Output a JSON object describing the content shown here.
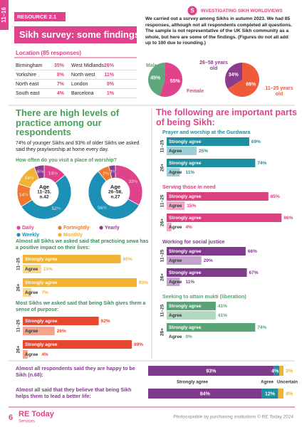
{
  "header": {
    "stage": "11–16",
    "resource": "RESOURCE 2.1",
    "title": "Sikh survey: some findings",
    "badge": "S",
    "series": "INVESTIGATING SIKH WORLDVIEWS"
  },
  "intro": "We carried out a survey among Sikhs in autumn 2023. We had 85 responses, although not all respondents completed all questions. The sample is not representative of the UK Sikh community as a whole, but here are some of the findings. (Figures do not all add up to 100 due to rounding.)",
  "location": {
    "title": "Location (85 responses)",
    "rows": [
      [
        "Birmingham",
        "35%",
        "West Midlands",
        "26%"
      ],
      [
        "Yorkshire",
        "8%",
        "North west",
        "11%"
      ],
      [
        "North east",
        "7%",
        "London",
        "8%"
      ],
      [
        "South east",
        "4%",
        "Barcelona",
        "1%"
      ]
    ]
  },
  "pies": [
    {
      "type": "pie",
      "categories": [
        "Male",
        "Female"
      ],
      "values": [
        45,
        55
      ],
      "value_labels": [
        "45%",
        "55%"
      ],
      "colors": [
        "#5fa77f",
        "#e0428b"
      ]
    },
    {
      "type": "pie",
      "categories": [
        "26–58 years old",
        "11–25 years old"
      ],
      "values": [
        34,
        66
      ],
      "value_labels": [
        "34%",
        "66%"
      ],
      "colors": [
        "#8b3c8f",
        "#ef5a3a"
      ]
    }
  ],
  "practice": {
    "heading": "There are high levels of practice among our respondents",
    "text": "74% of younger Sikhs and 93% of older Sikhs we asked said they pray/worship at home every day.",
    "question": "How often do you visit a place of worship?",
    "legend": [
      "Daily",
      "Weekly",
      "Fortnightly",
      "Monthly",
      "Yearly"
    ],
    "colors": [
      "#e0428b",
      "#1e8fb5",
      "#ef7a2f",
      "#f2b234",
      "#8b3c8f"
    ],
    "donuts": [
      {
        "type": "donut",
        "lines": [
          "Age",
          "11–25,",
          "n.42"
        ],
        "values": [
          14,
          52,
          14,
          14,
          6
        ],
        "value_labels": [
          "14%",
          "52%",
          "14%",
          "14%",
          "6%"
        ]
      },
      {
        "type": "donut",
        "lines": [
          "Age",
          "26–58,",
          "n.27"
        ],
        "values": [
          33,
          56,
          7,
          null,
          4
        ],
        "value_labels": [
          "33%",
          "56%",
          "7%",
          null,
          "4%"
        ]
      }
    ]
  },
  "sewa": {
    "text": "Almost all Sikhs we asked said that practising sewa has a positive impact on their lives:",
    "xlim": [
      0,
      100
    ],
    "colors": [
      "#f2b234",
      "#f8d88e"
    ],
    "groups": [
      {
        "age": "11–25",
        "labels": [
          "Strongly agree",
          "Agree"
        ],
        "values": [
          80,
          15
        ],
        "value_labels": [
          "80%",
          "15%"
        ]
      },
      {
        "age": "26+",
        "labels": [
          "Strongly agree",
          "Agree"
        ],
        "values": [
          93,
          7
        ],
        "value_labels": [
          "93%",
          "7%"
        ]
      }
    ]
  },
  "purpose": {
    "text": "Most Sikhs we asked said that being Sikh gives them a sense of purpose:",
    "xlim": [
      0,
      100
    ],
    "colors": [
      "#e8472f",
      "#f4a38e"
    ],
    "groups": [
      {
        "age": "11–25",
        "labels": [
          "Strongly agree",
          "Agree"
        ],
        "values": [
          62,
          26
        ],
        "value_labels": [
          "62%",
          "26%"
        ]
      },
      {
        "age": "26+",
        "labels": [
          "Strongly agree",
          "Agree"
        ],
        "values": [
          89,
          4
        ],
        "value_labels": [
          "89%",
          "4%"
        ]
      }
    ]
  },
  "importance": {
    "heading": "The following are important parts of being Sikh:",
    "xlim": [
      0,
      100
    ],
    "sections": [
      {
        "title": "Prayer and worship at the Gurdwara",
        "colors": [
          "#1e8fa0",
          "#9ccfd6"
        ],
        "groups": [
          {
            "age": "11–25",
            "labels": [
              "Strongly agree",
              "Agree"
            ],
            "values": [
              69,
              25
            ],
            "value_labels": [
              "69%",
              "25%"
            ]
          },
          {
            "age": "26+",
            "labels": [
              "Strongly agree",
              "Agree"
            ],
            "values": [
              74,
              11
            ],
            "value_labels": [
              "74%",
              "11%"
            ]
          }
        ]
      },
      {
        "title": "Serving those in need",
        "colors": [
          "#d9417f",
          "#efa5c3"
        ],
        "groups": [
          {
            "age": "11–25",
            "labels": [
              "Strongly agree",
              "Agree"
            ],
            "values": [
              85,
              15
            ],
            "value_labels": [
              "85%",
              "15%"
            ]
          },
          {
            "age": "26+",
            "labels": [
              "Strongly agree",
              "Agree"
            ],
            "values": [
              96,
              4
            ],
            "value_labels": [
              "96%",
              "4%"
            ]
          }
        ]
      },
      {
        "title": "Working for social justice",
        "colors": [
          "#7f3a8c",
          "#c4a3cc"
        ],
        "groups": [
          {
            "age": "11–25",
            "labels": [
              "Strongly agree",
              "Agree"
            ],
            "values": [
              66,
              29
            ],
            "value_labels": [
              "66%",
              "29%"
            ]
          },
          {
            "age": "26+",
            "labels": [
              "Strongly agree",
              "Agree"
            ],
            "values": [
              67,
              11
            ],
            "value_labels": [
              "67%",
              "11%"
            ]
          }
        ]
      },
      {
        "title": "Seeking to attain mukti (liberation)",
        "colors": [
          "#5aa374",
          "#b3d7bf"
        ],
        "groups": [
          {
            "age": "11–25",
            "labels": [
              "Strongly agree",
              "Agree"
            ],
            "values": [
              41,
              41
            ],
            "value_labels": [
              "41%",
              "41%"
            ]
          },
          {
            "age": "26+",
            "labels": [
              "Strongly agree",
              "Agree"
            ],
            "values": [
              74,
              0
            ],
            "value_labels": [
              "74%",
              "0%"
            ]
          }
        ]
      }
    ]
  },
  "summary": {
    "labels": [
      "Strongly agree",
      "Agree",
      "Uncertain"
    ],
    "colors": [
      "#7f3a8c",
      "#1e8fa0",
      "#f2b234"
    ],
    "xlim": [
      0,
      100
    ],
    "rows": [
      {
        "text": "Almost all respondents said they are happy to be Sikh (n.68):",
        "values": [
          93,
          4,
          3
        ],
        "value_labels": [
          "93%",
          "4%",
          "3%"
        ]
      },
      {
        "text": "Almost all said that they believe that being Sikh helps them to lead a better life:",
        "values": [
          84,
          12,
          4
        ],
        "value_labels": [
          "84%",
          "12%",
          "4%"
        ]
      }
    ]
  },
  "footer": {
    "page": "6",
    "logo": "RE Today",
    "logo_sub": "Services",
    "note": "Photocopiable by purchasing institutions © RE Today 2024"
  }
}
